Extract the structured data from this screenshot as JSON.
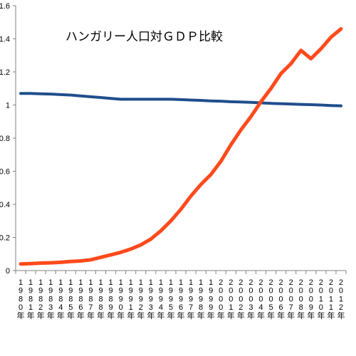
{
  "chart_data": {
    "type": "line",
    "title": "ハンガリー人口対ＧＤＰ比較",
    "xlabel": "",
    "ylabel": "",
    "ylim": [
      0,
      1.6
    ],
    "yticks": [
      "0",
      "0.2",
      "0.4",
      "0.6",
      "0.8",
      "1",
      "1.2",
      "1.4",
      "1.6"
    ],
    "grid": false,
    "categories": [
      "1980年",
      "1981年",
      "1982年",
      "1983年",
      "1984年",
      "1985年",
      "1986年",
      "1987年",
      "1988年",
      "1989年",
      "1990年",
      "1991年",
      "1992年",
      "1993年",
      "1994年",
      "1995年",
      "1996年",
      "1997年",
      "1998年",
      "1999年",
      "2000年",
      "2001年",
      "2002年",
      "2003年",
      "2004年",
      "2005年",
      "2006年",
      "2007年",
      "2008年",
      "2009年",
      "2010年",
      "2011年",
      "2012年"
    ],
    "series": [
      {
        "color": "#1f4e8c",
        "values": [
          1.07,
          1.07,
          1.068,
          1.066,
          1.063,
          1.06,
          1.055,
          1.05,
          1.045,
          1.04,
          1.035,
          1.035,
          1.035,
          1.035,
          1.035,
          1.035,
          1.033,
          1.03,
          1.028,
          1.025,
          1.023,
          1.02,
          1.018,
          1.016,
          1.013,
          1.01,
          1.008,
          1.006,
          1.004,
          1.002,
          1.0,
          0.997,
          0.995
        ]
      },
      {
        "color": "#ff4a1c",
        "values": [
          0.04,
          0.042,
          0.045,
          0.047,
          0.05,
          0.055,
          0.058,
          0.065,
          0.08,
          0.095,
          0.11,
          0.13,
          0.155,
          0.19,
          0.24,
          0.3,
          0.37,
          0.45,
          0.52,
          0.58,
          0.66,
          0.76,
          0.85,
          0.93,
          1.02,
          1.1,
          1.19,
          1.25,
          1.33,
          1.28,
          1.34,
          1.41,
          1.46
        ]
      }
    ]
  }
}
